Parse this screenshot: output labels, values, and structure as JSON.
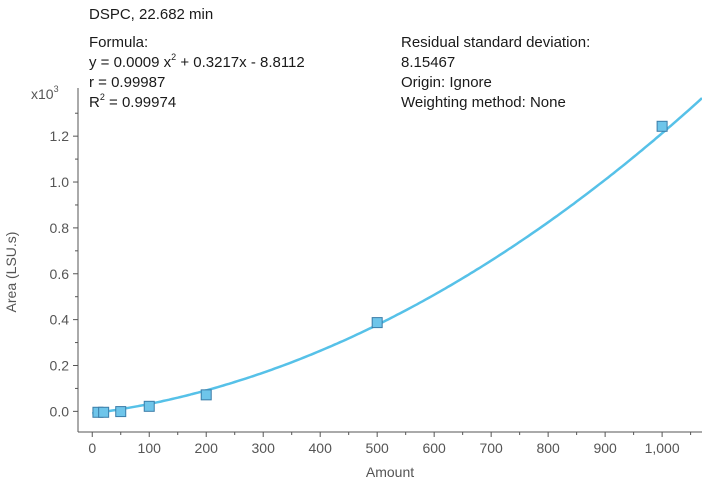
{
  "chart_data": {
    "type": "scatter",
    "title": "DSPC, 22.682 min",
    "formula_label": "Formula:",
    "formula_prefix": "y = 0.0009 x",
    "formula_exp": "2",
    "formula_suffix": " + 0.3217x - 8.8112",
    "r_text": "r = 0.99987",
    "r2_prefix": "R",
    "r2_exp": "2",
    "r2_suffix": " = 0.99974",
    "rsd_label": "Residual standard deviation:",
    "rsd_value": "8.15467",
    "origin_text": "Origin: Ignore",
    "weighting_text": "Weighting method: None",
    "xlabel": "Amount",
    "ylabel": "Area (LSU.s)",
    "y_multiplier_base": "x10",
    "y_multiplier_exp": "3",
    "xlim": [
      -25,
      1070
    ],
    "ylim": [
      -0.09,
      1.41
    ],
    "x_ticks": [
      0,
      100,
      200,
      300,
      400,
      500,
      600,
      700,
      800,
      900,
      1000
    ],
    "x_tick_labels": [
      "0",
      "100",
      "200",
      "300",
      "400",
      "500",
      "600",
      "700",
      "800",
      "900",
      "1,000"
    ],
    "y_ticks": [
      0.0,
      0.2,
      0.4,
      0.6,
      0.8,
      1.0,
      1.2
    ],
    "y_tick_labels": [
      "0.0",
      "0.2",
      "0.4",
      "0.6",
      "0.8",
      "1.0",
      "1.2"
    ],
    "series": [
      {
        "x": [
          10,
          20,
          50,
          100,
          200,
          500,
          1000
        ],
        "y": [
          -0.004,
          -0.004,
          -0.001,
          0.022,
          0.072,
          0.387,
          1.243
        ]
      }
    ],
    "fit": {
      "a": 0.0009,
      "b": 0.3217,
      "c": -8.8112
    },
    "colors": {
      "curve": "#56c1e8",
      "marker_fill": "#6ec5ea",
      "marker_stroke": "#3a7ca8",
      "axis": "#555555",
      "tick_text": "#555555"
    }
  }
}
